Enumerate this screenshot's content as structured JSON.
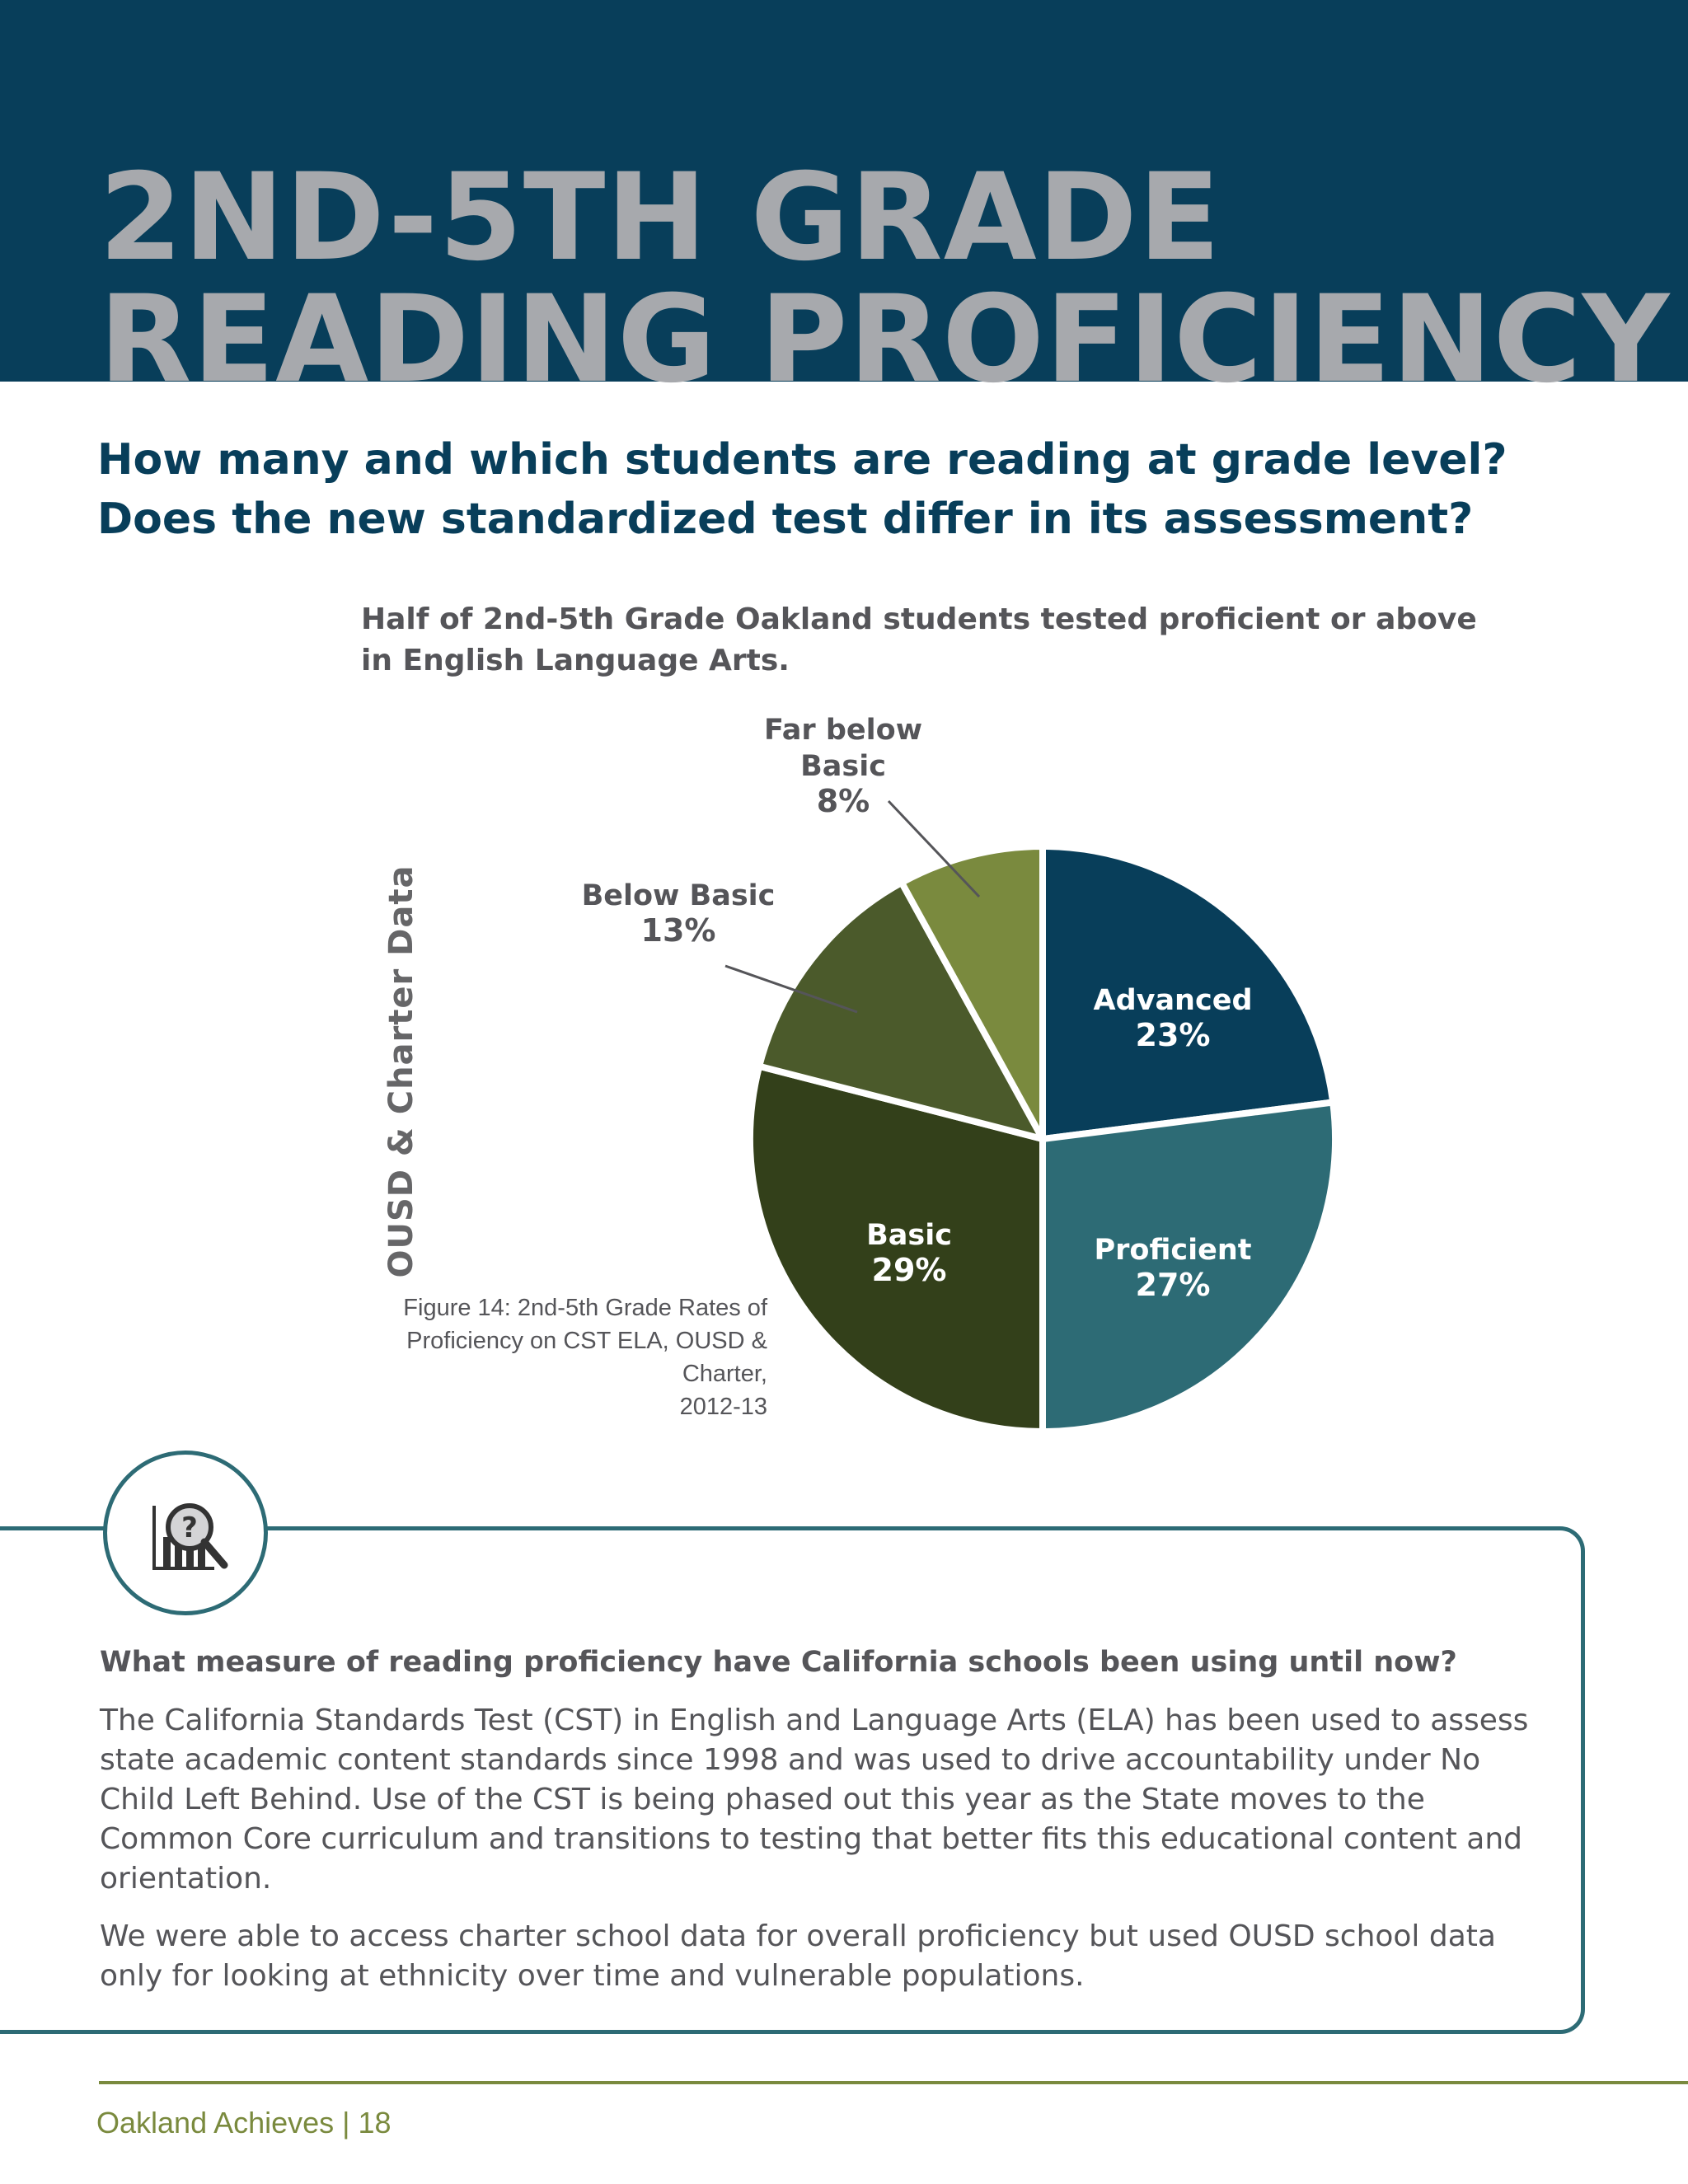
{
  "header": {
    "title_line1": "2ND-5TH GRADE",
    "title_line2": "READING PROFICIENCY"
  },
  "subtitle": {
    "line1": "How many and which students are reading at grade level?",
    "line2": "Does the new standardized test differ in its assessment?"
  },
  "chart_caption": {
    "line1": "Half of 2nd-5th Grade Oakland students tested proficient or above",
    "line2": "in English Language Arts."
  },
  "side_label": "OUSD & Charter Data",
  "figure_note": {
    "line1": "Figure 14: 2nd-5th Grade Rates of",
    "line2": "Proficiency on CST ELA, OUSD & Charter,",
    "line3": "2012-13"
  },
  "chart_data": {
    "type": "pie",
    "title": "",
    "slices": [
      {
        "label": "Advanced",
        "value": 23,
        "value_label": "23%",
        "color": "#083e5a",
        "text_color": "#ffffff"
      },
      {
        "label": "Proficient",
        "value": 27,
        "value_label": "27%",
        "color": "#2d6b75",
        "text_color": "#ffffff"
      },
      {
        "label": "Basic",
        "value": 29,
        "value_label": "29%",
        "color": "#33401a",
        "text_color": "#ffffff"
      },
      {
        "label": "Below Basic",
        "value": 13,
        "value_label": "13%",
        "color": "#4b5a2b",
        "text_color": "#555559"
      },
      {
        "label": "Far below Basic",
        "value": 8,
        "value_label": "8%",
        "color": "#7a8a3e",
        "text_color": "#555559"
      }
    ]
  },
  "info_box": {
    "icon": "data-magnifier-question-icon",
    "icon_glyph": "?",
    "heading": "What measure of reading proficiency have California schools been using until now?",
    "para1": "The California Standards Test (CST) in English and Language Arts (ELA) has been used to assess state academic content standards since 1998 and was used to drive accountability under No Child Left Behind. Use of the CST is being phased out this year as the State moves to the Common Core curriculum and transitions to testing that better fits this educational content and orientation.",
    "para2": "We were able to access charter school data for overall proficiency but used OUSD school data only for looking at ethnicity over time and vulnerable populations."
  },
  "footer": {
    "text": "Oakland Achieves | 18"
  },
  "colors": {
    "navy": "#083e5a",
    "teal": "#2d6b75",
    "olive": "#7a8a3e",
    "gray_text": "#555559",
    "title_gray": "#a7a9ad"
  }
}
